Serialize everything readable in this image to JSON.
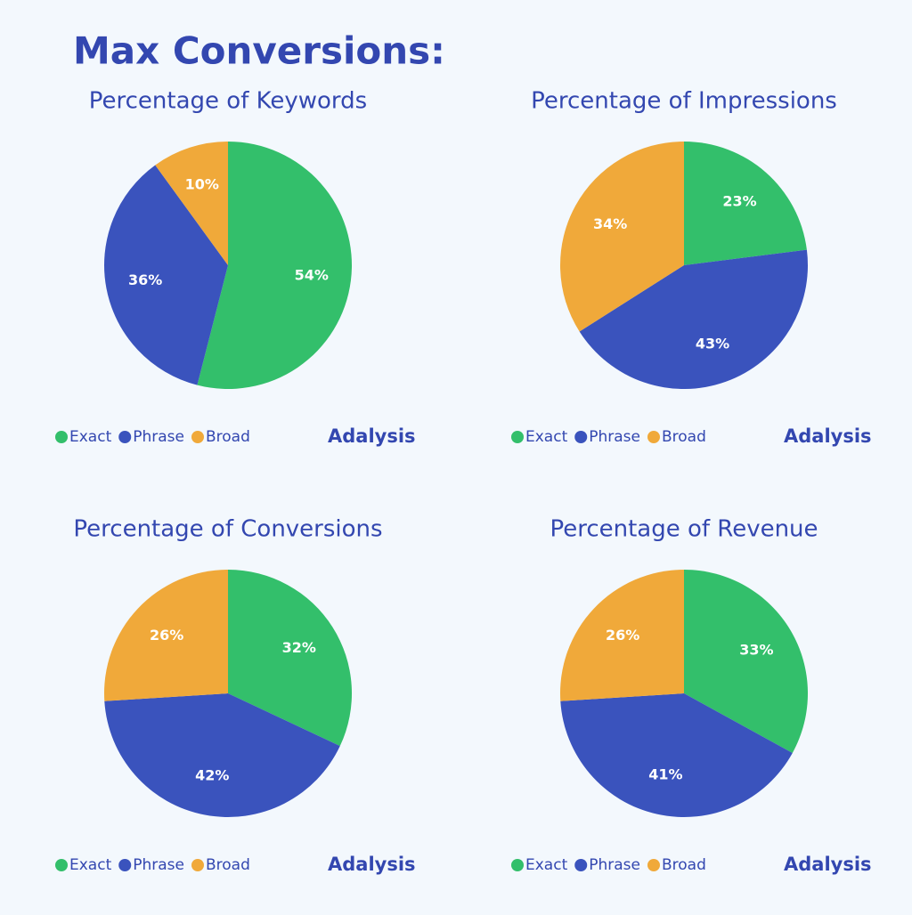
{
  "title": "Max Conversions:",
  "brand": "Adalysis",
  "chart_data": [
    {
      "type": "pie",
      "title": "Percentage of Keywords",
      "categories": [
        "Exact",
        "Phrase",
        "Broad"
      ],
      "values": [
        54,
        36,
        10
      ],
      "value_labels": [
        "54%",
        "36%",
        "10%"
      ],
      "colors": [
        "#33bf6b",
        "#3a53bd",
        "#f0a93a"
      ]
    },
    {
      "type": "pie",
      "title": "Percentage of Impressions",
      "categories": [
        "Exact",
        "Phrase",
        "Broad"
      ],
      "values": [
        23,
        43,
        34
      ],
      "value_labels": [
        "23%",
        "43%",
        "34%"
      ],
      "colors": [
        "#33bf6b",
        "#3a53bd",
        "#f0a93a"
      ]
    },
    {
      "type": "pie",
      "title": "Percentage of Conversions",
      "categories": [
        "Exact",
        "Phrase",
        "Broad"
      ],
      "values": [
        32,
        42,
        26
      ],
      "value_labels": [
        "32%",
        "42%",
        "26%"
      ],
      "colors": [
        "#33bf6b",
        "#3a53bd",
        "#f0a93a"
      ]
    },
    {
      "type": "pie",
      "title": "Percentage of Revenue",
      "categories": [
        "Exact",
        "Phrase",
        "Broad"
      ],
      "values": [
        33,
        41,
        26
      ],
      "value_labels": [
        "33%",
        "41%",
        "26%"
      ],
      "colors": [
        "#33bf6b",
        "#3a53bd",
        "#f0a93a"
      ]
    }
  ]
}
